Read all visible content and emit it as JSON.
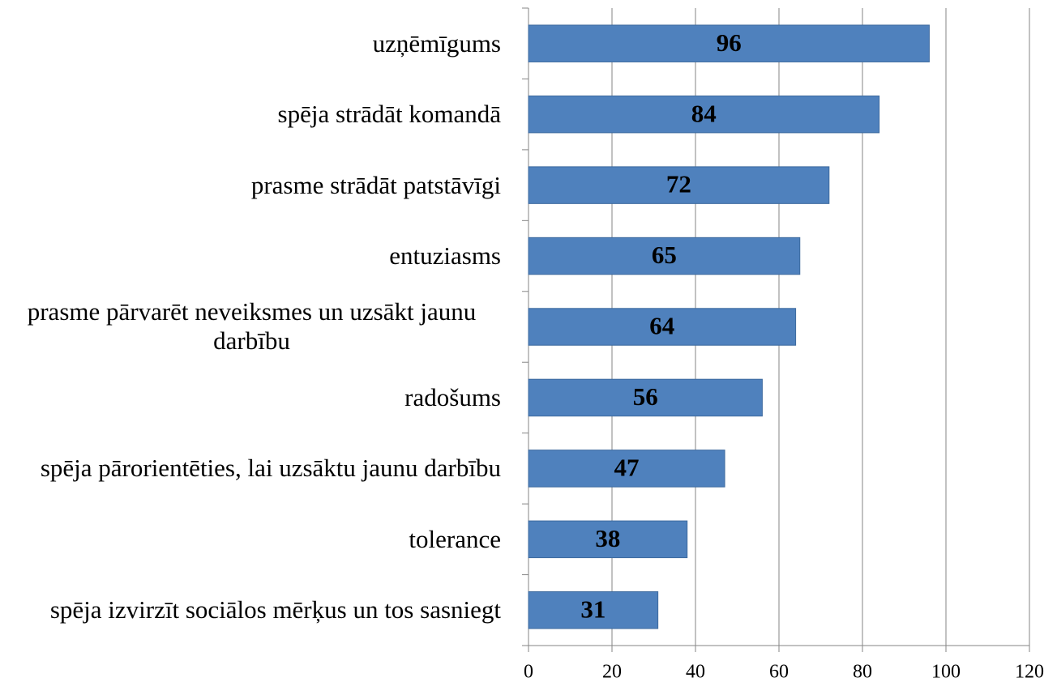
{
  "chart_data": {
    "type": "bar",
    "orientation": "horizontal",
    "categories": [
      "uzņēmīgums",
      "spēja strādāt komandā",
      "prasme strādāt patstāvīgi",
      "entuziasms",
      "prasme pārvarēt neveiksmes un uzsākt jaunu darbību",
      "radošums",
      "spēja pārorientēties, lai uzsāktu jaunu darbību",
      "tolerance",
      "spēja izvirzīt sociālos mērķus un tos sasniegt"
    ],
    "values": [
      96,
      84,
      72,
      65,
      64,
      56,
      47,
      38,
      31
    ],
    "color": "#4f81bd",
    "xlim": [
      0,
      120
    ],
    "xticks": [
      0,
      20,
      40,
      60,
      80,
      100,
      120
    ],
    "grid": true
  }
}
